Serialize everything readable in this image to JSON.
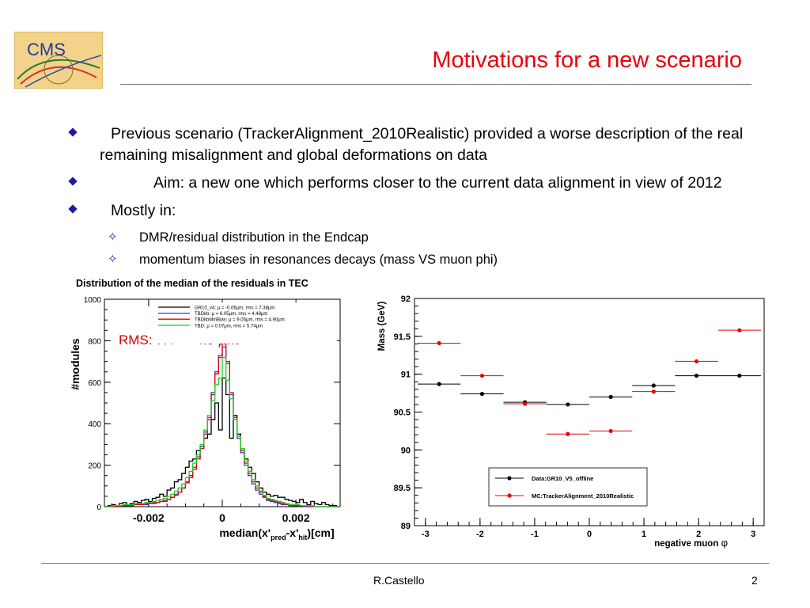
{
  "slide": {
    "logo_text": "CMS",
    "title": "Motivations for a new scenario",
    "bullets": [
      "Previous scenario (TrackerAlignment_2010Realistic) provided a worse description of the real remaining misalignment and global deformations on data",
      "Aim: a new one which performs closer to the current data alignment in view of 2012",
      "Mostly in:"
    ],
    "sub_bullets": [
      "DMR/residual distribution in the Endcap",
      "momentum biases in resonances decays (mass VS muon phi)"
    ],
    "footer_author": "R.Castello",
    "page_number": "2"
  },
  "colors": {
    "title": "#e8000a",
    "bullet": "#1a1aa6",
    "rms_text": "#d40000",
    "data_series": "#000000",
    "mc_series": "#e8000a"
  },
  "chart_data": [
    {
      "type": "histogram",
      "title": "Distribution of the median of the residuals in TEC",
      "xlabel": "median(x'pred-x'hit)[cm]",
      "xlabel_parts": {
        "main": "median(x'",
        "sub1": "pred",
        "mid": "-x'",
        "sub2": "hit",
        "end": ")[cm]"
      },
      "ylabel": "#modules",
      "xlim": [
        -0.0032,
        0.0032
      ],
      "ylim": [
        0,
        1000
      ],
      "x_ticks": [
        -0.002,
        0,
        0.002
      ],
      "x_tick_labels": [
        "-0.002",
        "0",
        "0.002"
      ],
      "y_ticks": [
        0,
        200,
        400,
        600,
        800,
        1000
      ],
      "y_tick_labels": [
        "0",
        "200",
        "400",
        "600",
        "800",
        "1000"
      ],
      "annotation": {
        "text_main": "RMS: 7.4 → 4.9 ",
        "text_unit": "μm"
      },
      "legend": {
        "position": "top-right",
        "entries": [
          "GR10_v4: μ = -0.06μm, rms = 7.38μm",
          "TBDkb: μ = 6.05μm, rms = 4.48μm",
          "TBDkbMinBias: μ = 9.05μm, rms = 4.90μm",
          "TBD: μ = 0.07μm, rms = 5.74μm"
        ]
      },
      "series": [
        {
          "name": "GR10_v4: μ = -0.06μm, rms = 7.38μm",
          "color": "#000000",
          "bin_width": 0.0001,
          "bin_starts": [
            -0.0032,
            -0.0031,
            -0.003,
            -0.0029,
            -0.0028,
            -0.0027,
            -0.0026,
            -0.0025,
            -0.0024,
            -0.0023,
            -0.0022,
            -0.0021,
            -0.002,
            -0.0019,
            -0.0018,
            -0.0017,
            -0.0016,
            -0.0015,
            -0.0014,
            -0.0013,
            -0.0012,
            -0.0011,
            -0.001,
            -0.0009,
            -0.0008,
            -0.0007,
            -0.0006,
            -0.0005,
            -0.0004,
            -0.0003,
            -0.0002,
            -0.0001,
            0,
            0.0001,
            0.0002,
            0.0003,
            0.0004,
            0.0005,
            0.0006,
            0.0007,
            0.0008,
            0.0009,
            0.001,
            0.0011,
            0.0012,
            0.0013,
            0.0014,
            0.0015,
            0.0016,
            0.0017,
            0.0018,
            0.0019,
            0.002,
            0.0021,
            0.0022,
            0.0023,
            0.0024,
            0.0025,
            0.0026,
            0.0027,
            0.0028,
            0.0029,
            0.003,
            0.0031
          ],
          "values": [
            0,
            5,
            10,
            5,
            15,
            20,
            10,
            15,
            25,
            20,
            30,
            35,
            25,
            40,
            45,
            60,
            50,
            80,
            90,
            120,
            130,
            160,
            190,
            220,
            230,
            270,
            290,
            330,
            350,
            420,
            500,
            370,
            620,
            540,
            330,
            440,
            350,
            280,
            230,
            190,
            160,
            120,
            90,
            70,
            60,
            50,
            55,
            45,
            45,
            35,
            30,
            25,
            20,
            35,
            20,
            10,
            25,
            15,
            10,
            20,
            10,
            5,
            5,
            0
          ]
        },
        {
          "name": "TBDkb: μ = 6.05μm, rms = 4.48μm",
          "color": "#3333ff",
          "bin_width": 0.0001,
          "bin_starts": [
            -0.0032,
            -0.0031,
            -0.003,
            -0.0029,
            -0.0028,
            -0.0027,
            -0.0026,
            -0.0025,
            -0.0024,
            -0.0023,
            -0.0022,
            -0.0021,
            -0.002,
            -0.0019,
            -0.0018,
            -0.0017,
            -0.0016,
            -0.0015,
            -0.0014,
            -0.0013,
            -0.0012,
            -0.0011,
            -0.001,
            -0.0009,
            -0.0008,
            -0.0007,
            -0.0006,
            -0.0005,
            -0.0004,
            -0.0003,
            -0.0002,
            -0.0001,
            0,
            0.0001,
            0.0002,
            0.0003,
            0.0004,
            0.0005,
            0.0006,
            0.0007,
            0.0008,
            0.0009,
            0.001,
            0.0011,
            0.0012,
            0.0013,
            0.0014,
            0.0015,
            0.0016,
            0.0017,
            0.0018,
            0.0019,
            0.002,
            0.0021,
            0.0022,
            0.0023,
            0.0024,
            0.0025,
            0.0026,
            0.0027,
            0.0028,
            0.0029,
            0.003,
            0.0031
          ],
          "values": [
            0,
            0,
            0,
            0,
            5,
            5,
            5,
            5,
            10,
            10,
            10,
            10,
            15,
            15,
            20,
            25,
            25,
            35,
            45,
            60,
            70,
            90,
            120,
            150,
            190,
            240,
            290,
            360,
            430,
            550,
            650,
            730,
            770,
            700,
            540,
            420,
            330,
            260,
            200,
            150,
            110,
            80,
            60,
            45,
            30,
            25,
            20,
            15,
            10,
            10,
            5,
            5,
            5,
            5,
            0,
            5,
            0,
            0,
            0,
            0,
            0,
            0,
            0,
            0
          ]
        },
        {
          "name": "TBDkbMinBias: μ = 9.05μm, rms = 4.90μm",
          "color": "#e8000a",
          "bin_width": 0.0001,
          "bin_starts": [
            -0.0032,
            -0.0031,
            -0.003,
            -0.0029,
            -0.0028,
            -0.0027,
            -0.0026,
            -0.0025,
            -0.0024,
            -0.0023,
            -0.0022,
            -0.0021,
            -0.002,
            -0.0019,
            -0.0018,
            -0.0017,
            -0.0016,
            -0.0015,
            -0.0014,
            -0.0013,
            -0.0012,
            -0.0011,
            -0.001,
            -0.0009,
            -0.0008,
            -0.0007,
            -0.0006,
            -0.0005,
            -0.0004,
            -0.0003,
            -0.0002,
            -0.0001,
            0,
            0.0001,
            0.0002,
            0.0003,
            0.0004,
            0.0005,
            0.0006,
            0.0007,
            0.0008,
            0.0009,
            0.001,
            0.0011,
            0.0012,
            0.0013,
            0.0014,
            0.0015,
            0.0016,
            0.0017,
            0.0018,
            0.0019,
            0.002,
            0.0021,
            0.0022,
            0.0023,
            0.0024,
            0.0025,
            0.0026,
            0.0027,
            0.0028,
            0.0029,
            0.003,
            0.0031
          ],
          "values": [
            0,
            0,
            0,
            0,
            5,
            5,
            5,
            10,
            10,
            10,
            10,
            15,
            15,
            20,
            20,
            25,
            30,
            35,
            45,
            55,
            70,
            90,
            115,
            140,
            180,
            230,
            280,
            350,
            420,
            540,
            640,
            720,
            790,
            690,
            550,
            430,
            340,
            270,
            210,
            160,
            120,
            90,
            70,
            50,
            35,
            30,
            25,
            20,
            15,
            10,
            10,
            5,
            5,
            5,
            5,
            0,
            5,
            0,
            0,
            0,
            0,
            0,
            0,
            0
          ]
        },
        {
          "name": "TBD: μ = 0.07μm, rms = 5.74μm",
          "color": "#22cc22",
          "bin_width": 0.0001,
          "bin_starts": [
            -0.0032,
            -0.0031,
            -0.003,
            -0.0029,
            -0.0028,
            -0.0027,
            -0.0026,
            -0.0025,
            -0.0024,
            -0.0023,
            -0.0022,
            -0.0021,
            -0.002,
            -0.0019,
            -0.0018,
            -0.0017,
            -0.0016,
            -0.0015,
            -0.0014,
            -0.0013,
            -0.0012,
            -0.0011,
            -0.001,
            -0.0009,
            -0.0008,
            -0.0007,
            -0.0006,
            -0.0005,
            -0.0004,
            -0.0003,
            -0.0002,
            -0.0001,
            0,
            0.0001,
            0.0002,
            0.0003,
            0.0004,
            0.0005,
            0.0006,
            0.0007,
            0.0008,
            0.0009,
            0.001,
            0.0011,
            0.0012,
            0.0013,
            0.0014,
            0.0015,
            0.0016,
            0.0017,
            0.0018,
            0.0019,
            0.002,
            0.0021,
            0.0022,
            0.0023,
            0.0024,
            0.0025,
            0.0026,
            0.0027,
            0.0028,
            0.0029,
            0.003,
            0.0031
          ],
          "values": [
            0,
            0,
            5,
            5,
            5,
            10,
            10,
            10,
            15,
            15,
            15,
            20,
            20,
            25,
            30,
            35,
            40,
            50,
            60,
            75,
            90,
            110,
            140,
            170,
            210,
            250,
            300,
            370,
            440,
            510,
            590,
            620,
            720,
            610,
            520,
            420,
            340,
            280,
            220,
            170,
            130,
            100,
            75,
            55,
            40,
            35,
            30,
            25,
            20,
            15,
            10,
            10,
            10,
            5,
            5,
            5,
            5,
            0,
            0,
            0,
            0,
            0,
            0,
            0
          ]
        }
      ]
    },
    {
      "type": "scatter",
      "xlabel": "negative muon",
      "xlabel_symbol": "φ",
      "ylabel": "Mass (GeV)",
      "xlim": [
        -3.2,
        3.2
      ],
      "ylim": [
        89,
        92
      ],
      "x_ticks": [
        -3,
        -2,
        -1,
        0,
        1,
        2,
        3
      ],
      "x_tick_labels": [
        "-3",
        "-2",
        "-1",
        "0",
        "1",
        "2",
        "3"
      ],
      "y_ticks": [
        89,
        89.5,
        90,
        90.5,
        91,
        91.5,
        92
      ],
      "y_tick_labels": [
        "89",
        "89.5",
        "90",
        "90.5",
        "91",
        "91.5",
        "92"
      ],
      "legend_position": "bottom-right",
      "bin_half_width": 0.393,
      "series": [
        {
          "name": "Data:GR10_V5_offline",
          "color": "#000000",
          "x": [
            -2.749,
            -1.963,
            -1.178,
            -0.393,
            0.393,
            1.178,
            1.963,
            2.749
          ],
          "y": [
            90.87,
            90.74,
            90.63,
            90.6,
            90.7,
            90.85,
            90.98,
            90.98
          ]
        },
        {
          "name": "MC:TrackerAlignment_2010Realistic",
          "color": "#e8000a",
          "x": [
            -2.749,
            -1.963,
            -1.178,
            -0.393,
            0.393,
            1.178,
            1.963,
            2.749
          ],
          "y": [
            91.41,
            90.98,
            90.61,
            90.21,
            90.25,
            90.77,
            91.17,
            91.58
          ]
        }
      ]
    }
  ]
}
